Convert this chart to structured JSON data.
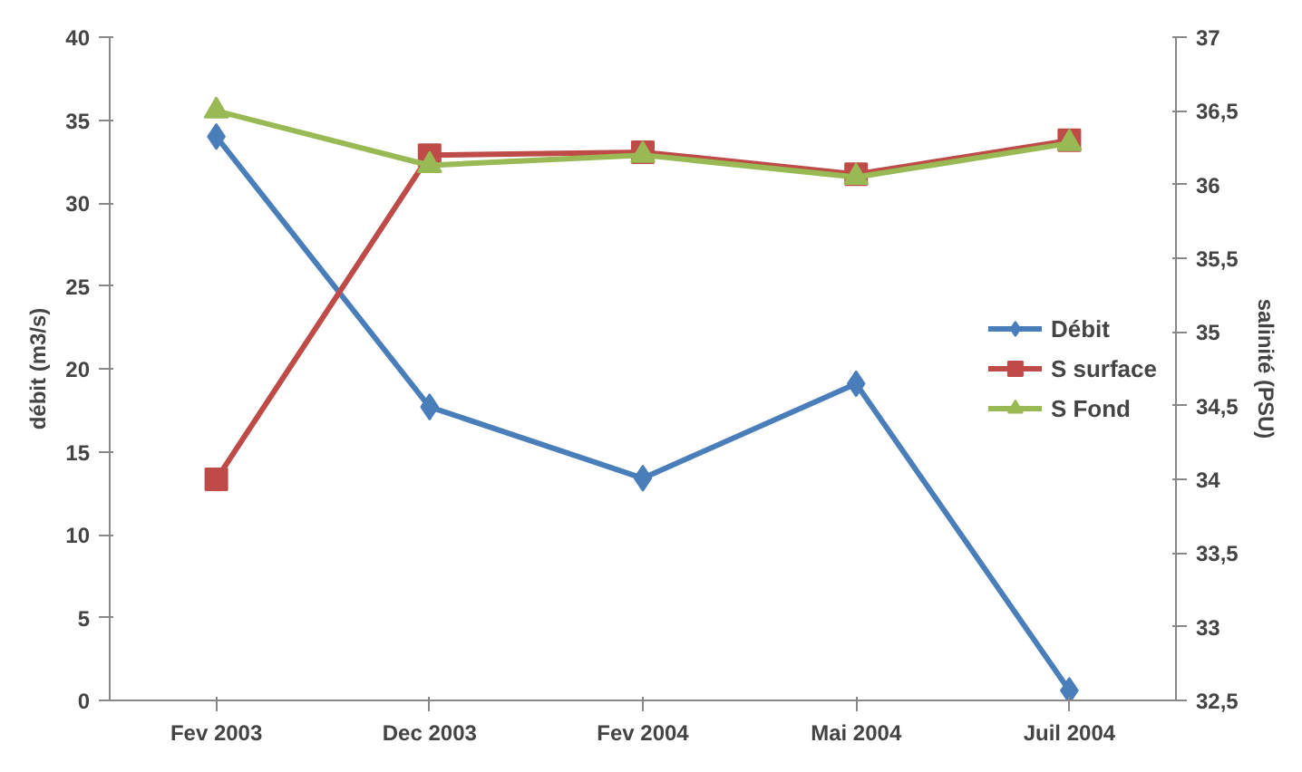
{
  "chart_data": {
    "type": "line",
    "categories": [
      "Fev 2003",
      "Dec 2003",
      "Fev 2004",
      "Mai 2004",
      "Juil 2004"
    ],
    "ylabel": "débit (m3/s)",
    "y2label": "salinité (PSU)",
    "ylim": [
      0,
      40
    ],
    "yticks": [
      0,
      5,
      10,
      15,
      20,
      25,
      30,
      35,
      40
    ],
    "y2lim": [
      32.5,
      37
    ],
    "y2ticks": [
      {
        "value": 32.5,
        "label": "32,5"
      },
      33,
      {
        "value": 33.5,
        "label": "33,5"
      },
      34,
      {
        "value": 34.5,
        "label": "34,5"
      },
      35,
      {
        "value": 35.5,
        "label": "35,5"
      },
      36,
      {
        "value": 36.5,
        "label": "36,5"
      },
      37
    ],
    "grid": false,
    "legend": "right",
    "series": [
      {
        "name": "Débit",
        "color": "#4a7ebb",
        "marker": "diamond",
        "values": [
          34,
          17.7,
          13.4,
          19.1,
          0.6
        ]
      },
      {
        "name": "S surface",
        "color": "#be4b48",
        "marker": "square",
        "axis": "y2",
        "values": [
          34.0,
          36.2,
          36.22,
          36.07,
          36.3
        ]
      },
      {
        "name": "S Fond",
        "color": "#98b954",
        "marker": "triangle",
        "axis": "y2",
        "values": [
          36.5,
          36.13,
          36.2,
          36.05,
          36.28
        ]
      }
    ]
  }
}
